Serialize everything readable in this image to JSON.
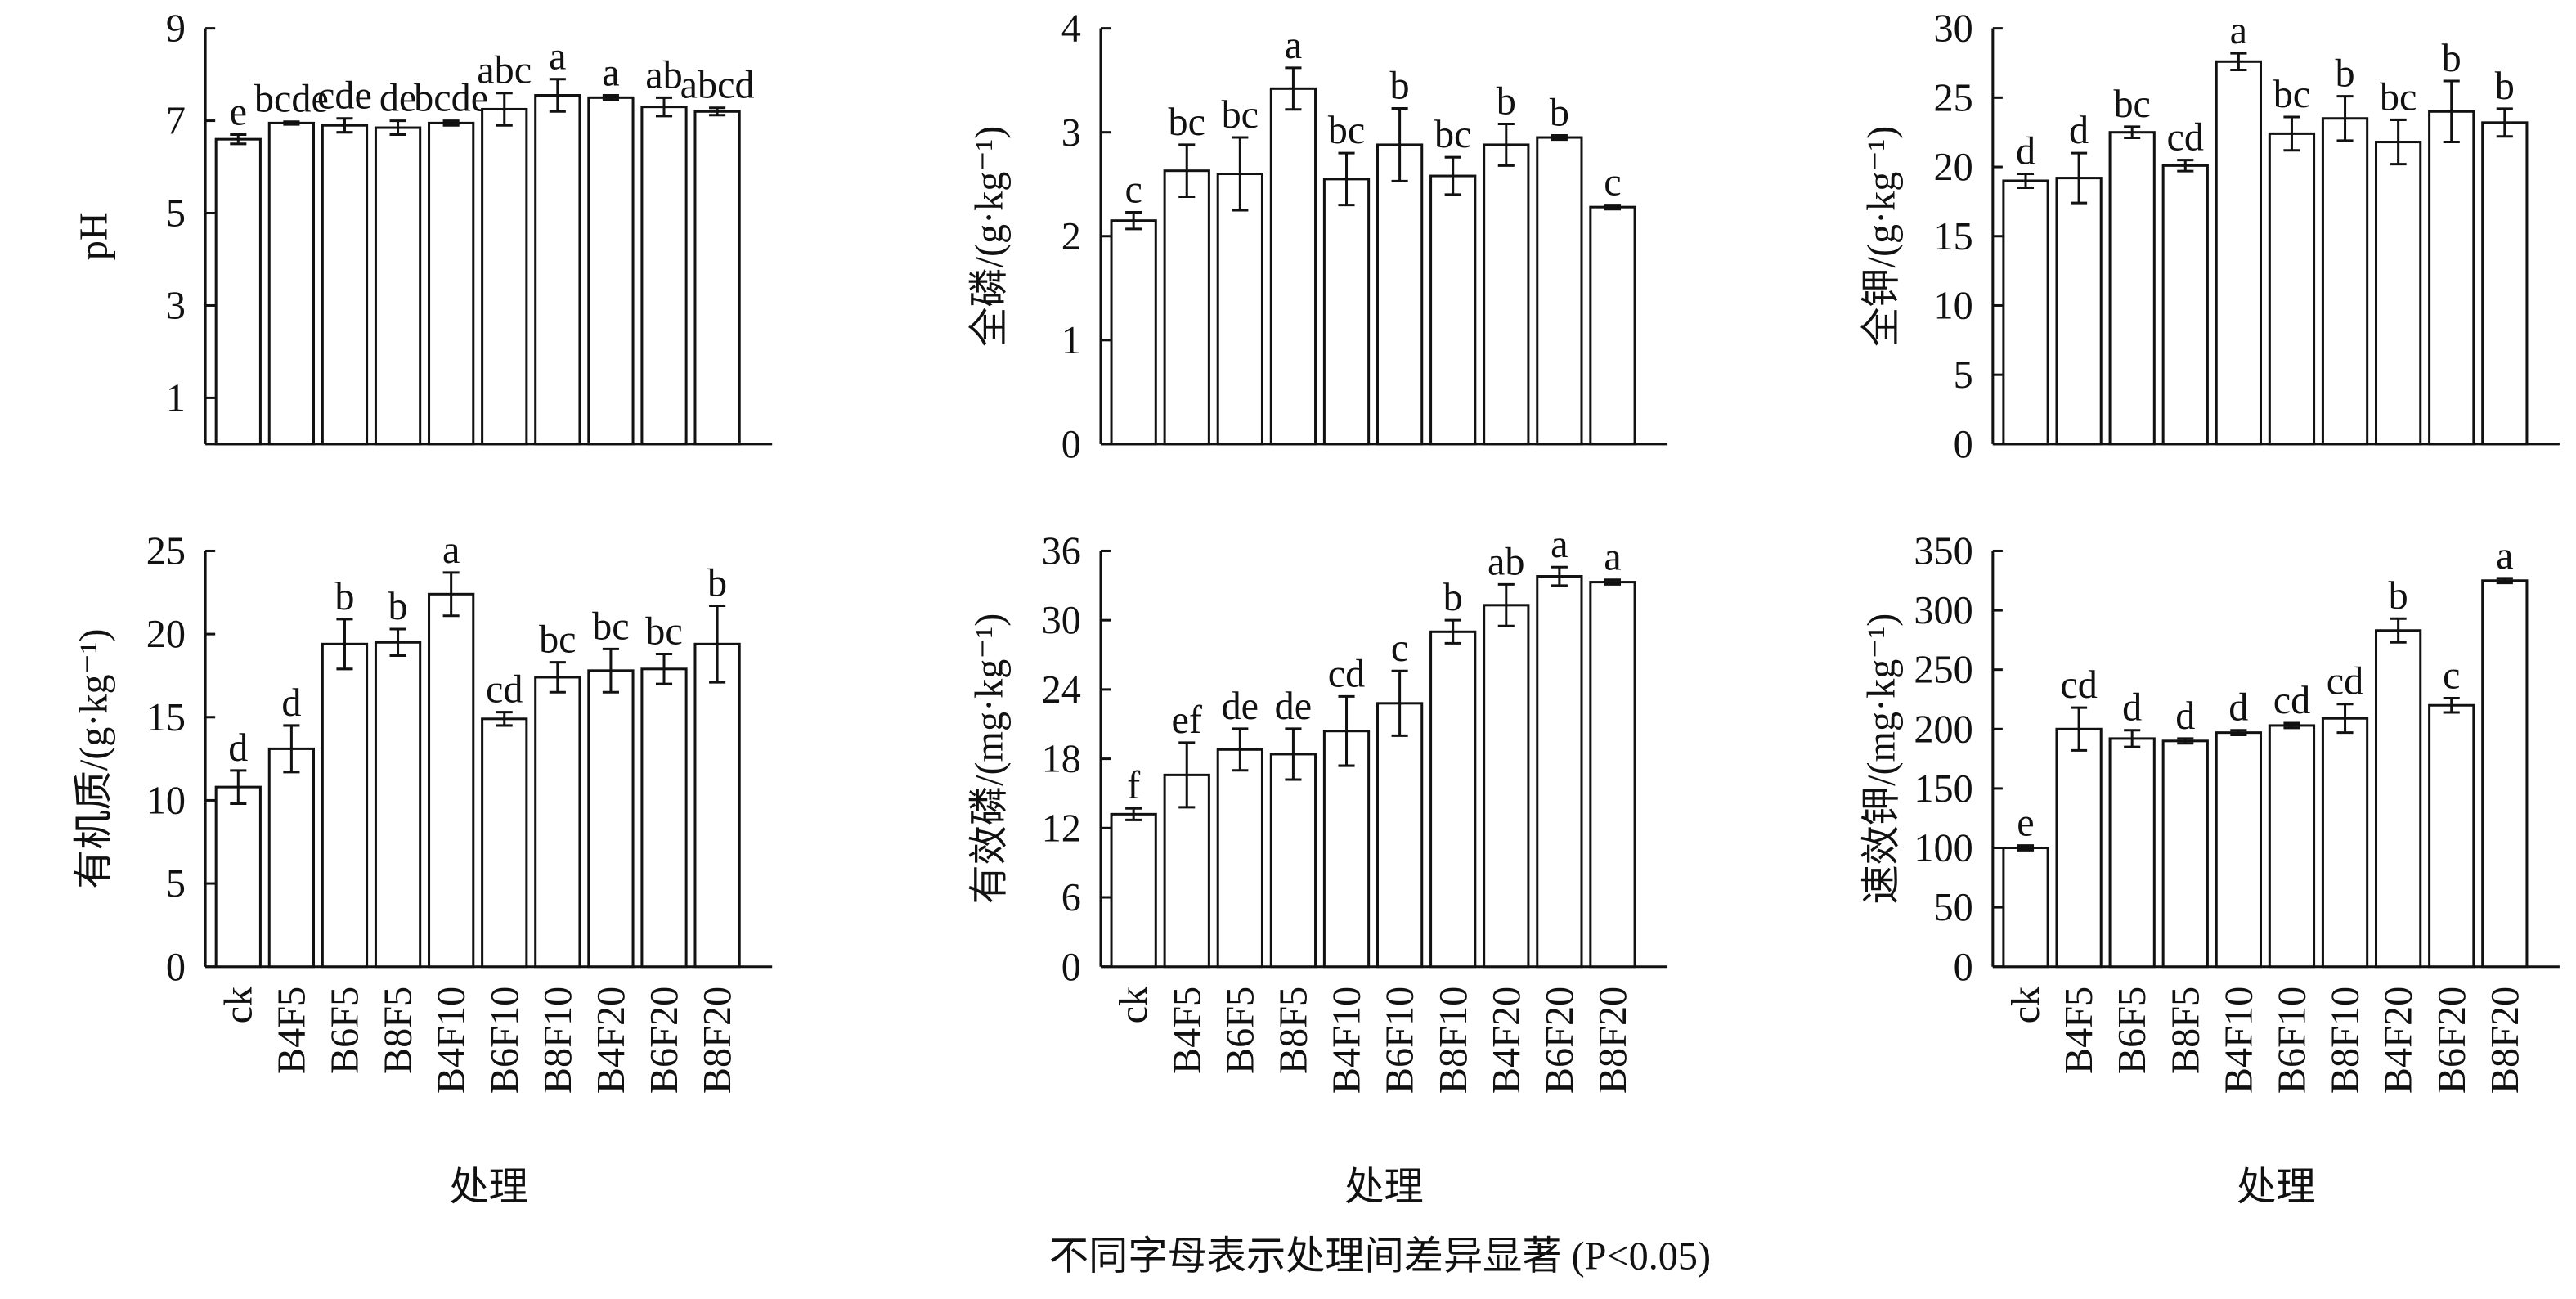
{
  "caption": "不同字母表示处理间差异显著 (P<0.05)",
  "chart_data": [
    {
      "type": "bar",
      "ylabel": "pH",
      "categories": [
        null,
        null,
        null,
        null,
        null,
        null,
        null,
        null,
        null,
        null
      ],
      "values": [
        6.6,
        6.95,
        6.9,
        6.85,
        6.95,
        7.25,
        7.55,
        7.5,
        7.3,
        7.2
      ],
      "errors": [
        0.1,
        0.03,
        0.15,
        0.15,
        0.05,
        0.35,
        0.35,
        0.05,
        0.2,
        0.08
      ],
      "annotations": [
        "e",
        "bcde",
        "cde",
        "de",
        "bcde",
        "abc",
        "a",
        "a",
        "ab",
        "abcd"
      ],
      "ylim": [
        0,
        9
      ],
      "yticks": [
        1,
        3,
        5,
        7,
        9
      ],
      "color": "#ffffff"
    },
    {
      "type": "bar",
      "ylabel": "全磷/(g·kg⁻¹)",
      "categories": [
        null,
        null,
        null,
        null,
        null,
        null,
        null,
        null,
        null,
        null
      ],
      "values": [
        2.15,
        2.63,
        2.6,
        3.42,
        2.55,
        2.88,
        2.58,
        2.88,
        2.95,
        2.28
      ],
      "errors": [
        0.08,
        0.25,
        0.35,
        0.2,
        0.25,
        0.35,
        0.18,
        0.2,
        0.02,
        0.02
      ],
      "annotations": [
        "c",
        "bc",
        "bc",
        "a",
        "bc",
        "b",
        "bc",
        "b",
        "b",
        "c"
      ],
      "ylim": [
        0,
        4
      ],
      "yticks": [
        0,
        1,
        2,
        3,
        4
      ],
      "color": "#ffffff"
    },
    {
      "type": "bar",
      "ylabel": "全钾/(g·kg⁻¹)",
      "categories": [
        null,
        null,
        null,
        null,
        null,
        null,
        null,
        null,
        null,
        null
      ],
      "values": [
        19,
        19.2,
        22.5,
        20.1,
        27.6,
        22.4,
        23.5,
        21.8,
        24,
        23.2
      ],
      "errors": [
        0.5,
        1.8,
        0.4,
        0.4,
        0.6,
        1.2,
        1.6,
        1.6,
        2.2,
        1
      ],
      "annotations": [
        "d",
        "d",
        "bc",
        "cd",
        "a",
        "bc",
        "b",
        "bc",
        "b",
        "b"
      ],
      "ylim": [
        0,
        30
      ],
      "yticks": [
        0,
        5,
        10,
        15,
        20,
        25,
        30
      ],
      "color": "#ffffff"
    },
    {
      "type": "bar",
      "ylabel": "有机质/(g·kg⁻¹)",
      "xlabel": "处理",
      "categories": [
        "ck",
        "B4F5",
        "B6F5",
        "B8F5",
        "B4F10",
        "B6F10",
        "B8F10",
        "B4F20",
        "B6F20",
        "B8F20"
      ],
      "values": [
        10.8,
        13.1,
        19.4,
        19.5,
        22.4,
        14.9,
        17.4,
        17.8,
        17.9,
        19.4
      ],
      "errors": [
        1,
        1.4,
        1.5,
        0.8,
        1.3,
        0.4,
        0.9,
        1.3,
        0.9,
        2.3
      ],
      "annotations": [
        "d",
        "d",
        "b",
        "b",
        "a",
        "cd",
        "bc",
        "bc",
        "bc",
        "b"
      ],
      "ylim": [
        0,
        25
      ],
      "yticks": [
        0,
        5,
        10,
        15,
        20,
        25
      ],
      "color": "#ffffff"
    },
    {
      "type": "bar",
      "ylabel": "有效磷/(mg·kg⁻¹)",
      "xlabel": "处理",
      "categories": [
        "ck",
        "B4F5",
        "B6F5",
        "B8F5",
        "B4F10",
        "B6F10",
        "B8F10",
        "B4F20",
        "B6F20",
        "B8F20"
      ],
      "values": [
        13.2,
        16.6,
        18.8,
        18.4,
        20.4,
        22.8,
        29,
        31.3,
        33.8,
        33.3
      ],
      "errors": [
        0.5,
        2.8,
        1.8,
        2.2,
        3,
        2.8,
        1,
        1.8,
        0.8,
        0.2
      ],
      "annotations": [
        "f",
        "ef",
        "de",
        "de",
        "cd",
        "c",
        "b",
        "ab",
        "a",
        "a"
      ],
      "ylim": [
        0,
        36
      ],
      "yticks": [
        0,
        6,
        12,
        18,
        24,
        30,
        36
      ],
      "color": "#ffffff"
    },
    {
      "type": "bar",
      "ylabel": "速效钾/(mg·kg⁻¹)",
      "xlabel": "处理",
      "categories": [
        "ck",
        "B4F5",
        "B6F5",
        "B8F5",
        "B4F10",
        "B6F10",
        "B8F10",
        "B4F20",
        "B6F20",
        "B8F20"
      ],
      "values": [
        100,
        200,
        192,
        190,
        197,
        203,
        209,
        283,
        220,
        325
      ],
      "errors": [
        2,
        18,
        7,
        2,
        2,
        2,
        12,
        10,
        6,
        2
      ],
      "annotations": [
        "e",
        "cd",
        "d",
        "d",
        "d",
        "cd",
        "cd",
        "b",
        "c",
        "a"
      ],
      "ylim": [
        0,
        350
      ],
      "yticks": [
        0,
        50,
        100,
        150,
        200,
        250,
        300,
        350
      ],
      "color": "#ffffff"
    }
  ]
}
